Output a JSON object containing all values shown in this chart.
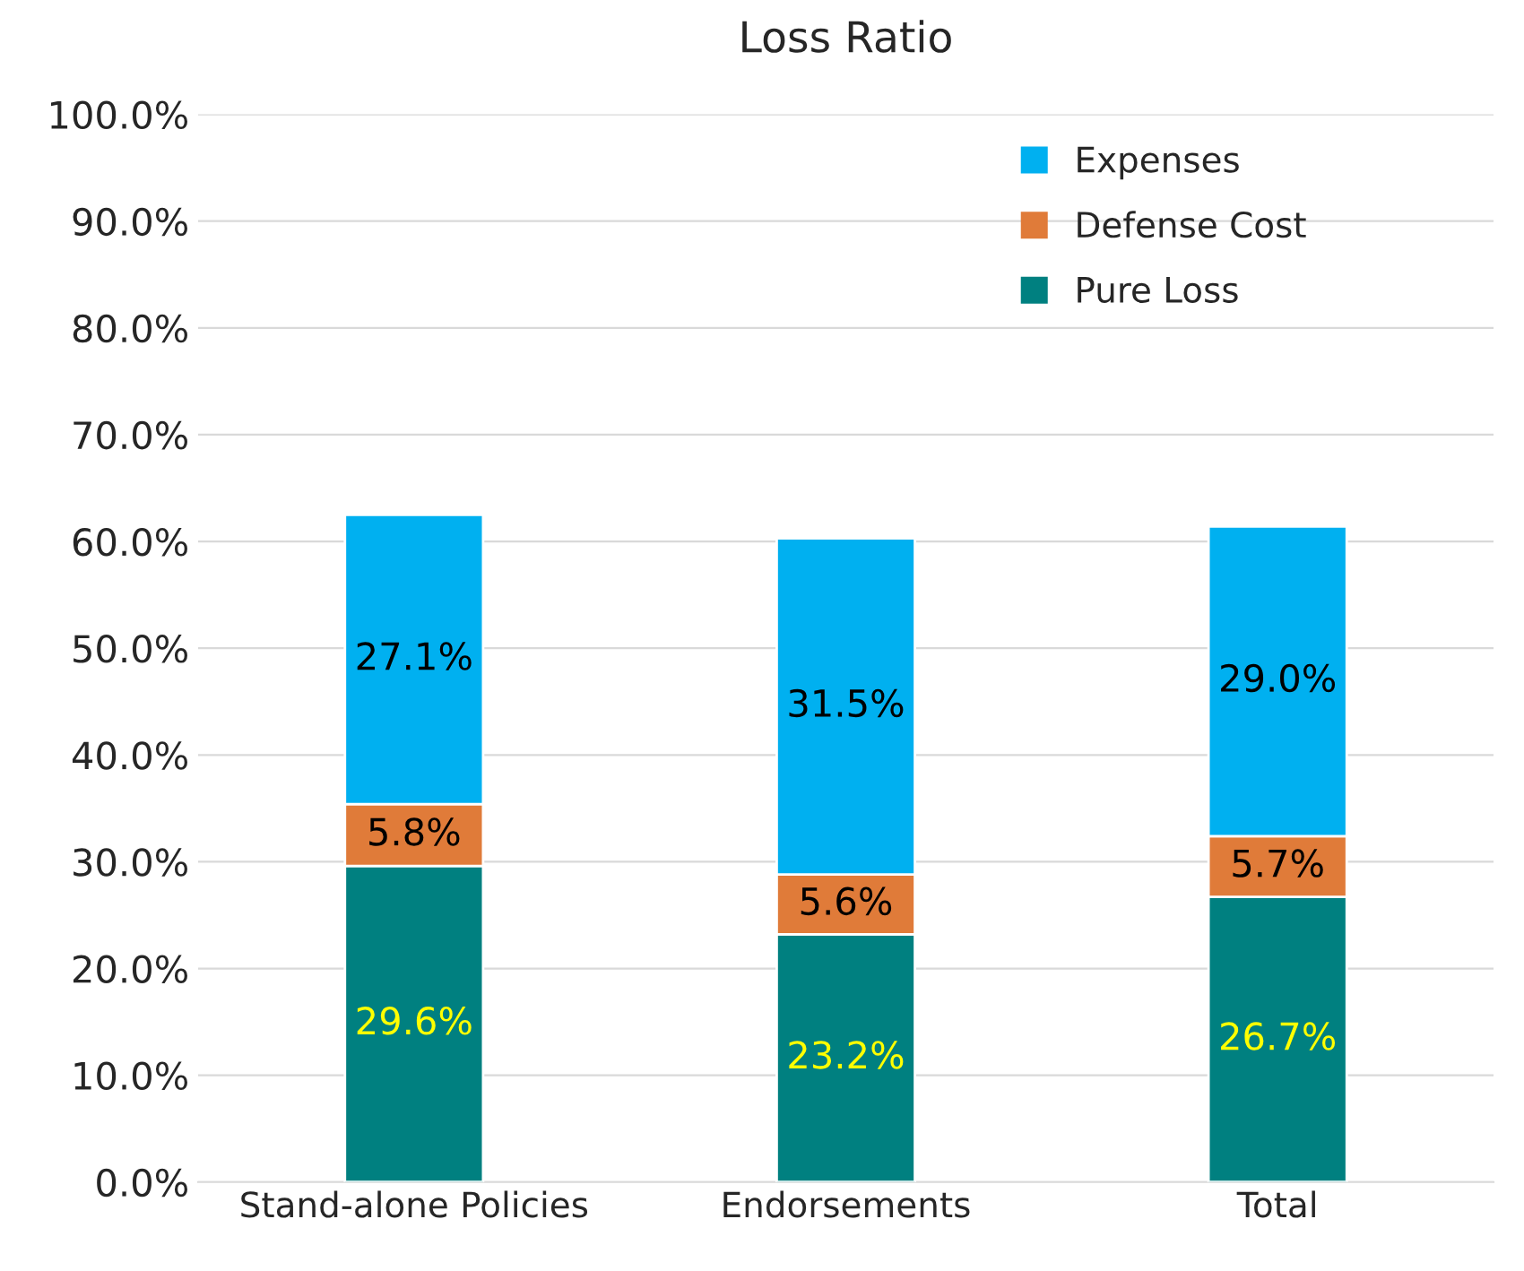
{
  "chart_data": {
    "type": "bar",
    "title": "Loss Ratio",
    "stacked": true,
    "categories": [
      "Stand-alone Policies",
      "Endorsements",
      "Total"
    ],
    "series": [
      {
        "name": "Pure Loss",
        "color": "#008080",
        "values": [
          29.6,
          23.2,
          26.7
        ],
        "value_labels": [
          "29.6%",
          "23.2%",
          "26.7%"
        ]
      },
      {
        "name": "Defense Cost",
        "color": "#e07b39",
        "values": [
          5.8,
          5.6,
          5.7
        ],
        "value_labels": [
          "5.8%",
          "5.6%",
          "5.7%"
        ]
      },
      {
        "name": "Expenses",
        "color": "#00b0f0",
        "values": [
          27.1,
          31.5,
          29.0
        ],
        "value_labels": [
          "27.1%",
          "31.5%",
          "29.0%"
        ]
      }
    ],
    "ylim": [
      0,
      100
    ],
    "yticks": [
      {
        "value": 0,
        "label": "0.0%"
      },
      {
        "value": 10,
        "label": "10.0%"
      },
      {
        "value": 20,
        "label": "20.0%"
      },
      {
        "value": 30,
        "label": "30.0%"
      },
      {
        "value": 40,
        "label": "40.0%"
      },
      {
        "value": 50,
        "label": "50.0%"
      },
      {
        "value": 60,
        "label": "60.0%"
      },
      {
        "value": 70,
        "label": "70.0%"
      },
      {
        "value": 80,
        "label": "80.0%"
      },
      {
        "value": 90,
        "label": "90.0%"
      },
      {
        "value": 100,
        "label": "100.0%"
      }
    ],
    "grid": "y",
    "legend": "top right"
  }
}
